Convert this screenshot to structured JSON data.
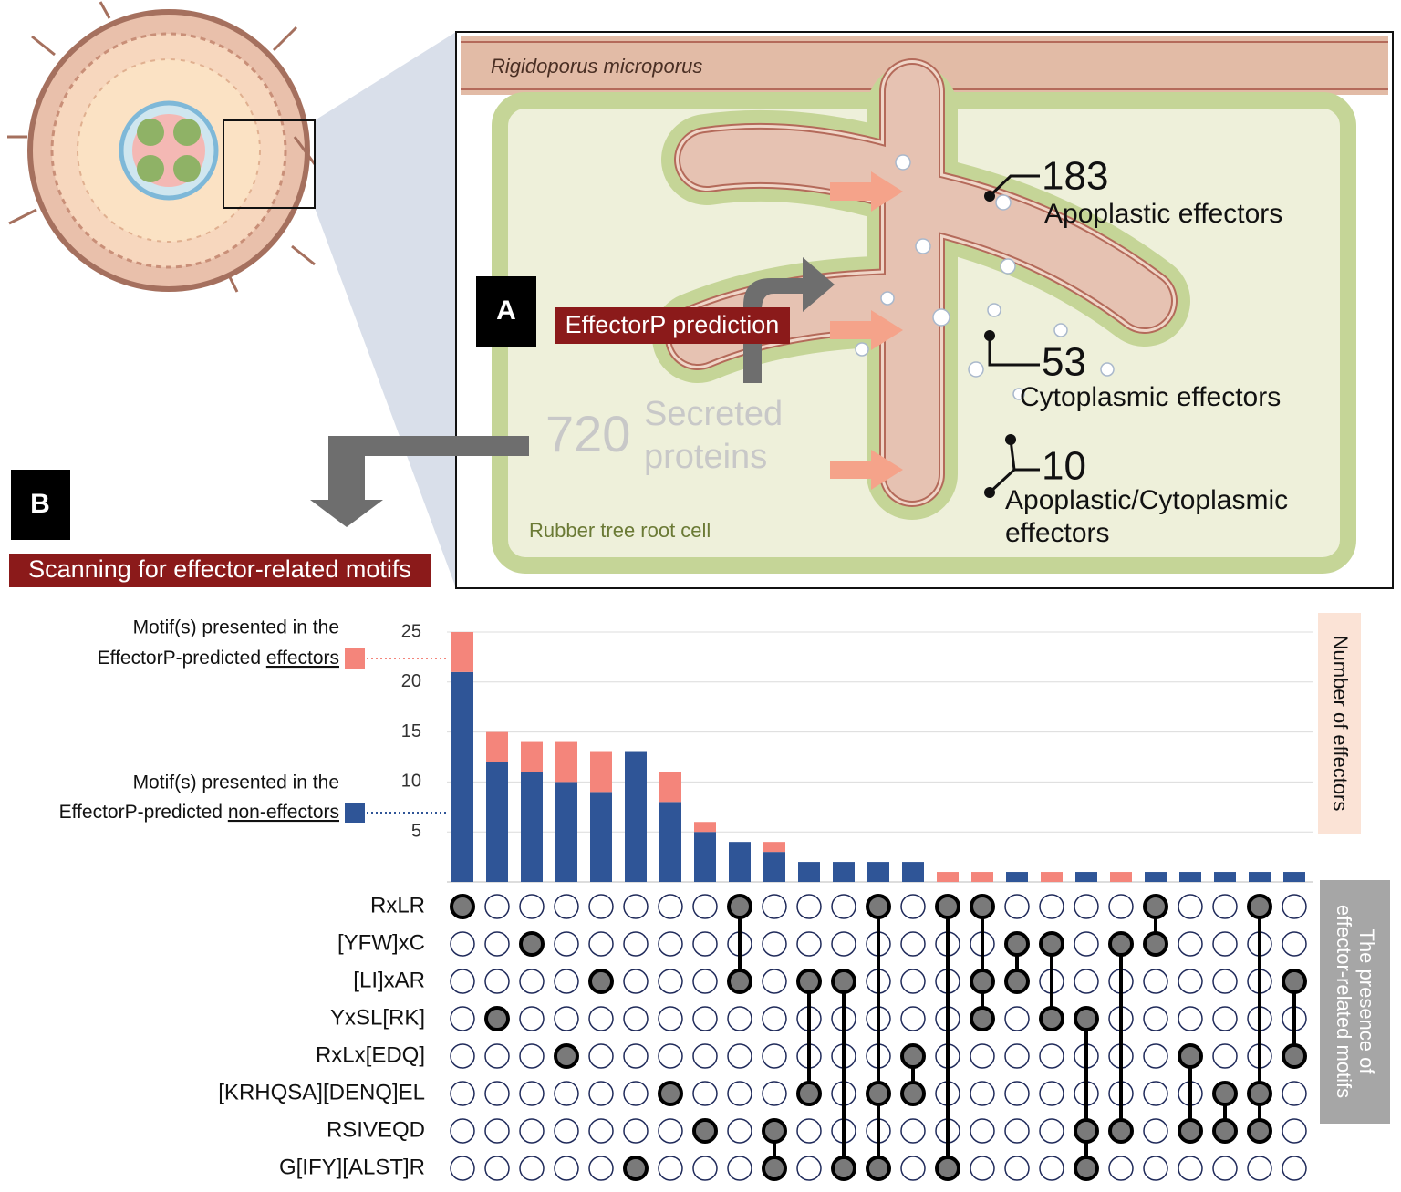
{
  "diagram": {
    "fungus": "Rigidoporus  microporus",
    "host": "Rubber tree root cell",
    "panel_a": "A",
    "panel_b": "B",
    "prediction": "EffectorP prediction",
    "secreted_count": 720,
    "secreted_label": [
      "Secreted",
      "proteins"
    ],
    "apoplastic_count": 183,
    "apoplastic_label": "Apoplastic effectors",
    "cytoplasmic_count": 53,
    "cytoplasmic_label": "Cytoplasmic effectors",
    "dual_count": 10,
    "dual_label": [
      "Apoplastic/Cytoplasmic",
      "effectors"
    ],
    "scanning": "Scanning for effector-related motifs"
  },
  "chart_data": {
    "type": "upset",
    "ylabel": "Number of effectors",
    "matrix_label": [
      "The presence of",
      "effector-related motifs"
    ],
    "legend_prefix": [
      "Motif(s) presented in the",
      "EffectorP-predicted"
    ],
    "sets": [
      "RxLR",
      "[YFW]xC",
      "[LI]xAR",
      "YxSL[RK]",
      "RxLx[EDQ]",
      "[KRHQSA][DENQ]EL",
      "RSIVEQD",
      "G[IFY][ALST]R"
    ],
    "combinations": [
      [
        0
      ],
      [
        3
      ],
      [
        1
      ],
      [
        4
      ],
      [
        2
      ],
      [
        7
      ],
      [
        5
      ],
      [
        6
      ],
      [
        0,
        2
      ],
      [
        6,
        7
      ],
      [
        2,
        5
      ],
      [
        2,
        7
      ],
      [
        0,
        5,
        7
      ],
      [
        4,
        5
      ],
      [
        0,
        7
      ],
      [
        0,
        2,
        3
      ],
      [
        1,
        2
      ],
      [
        1,
        3
      ],
      [
        3,
        6,
        7
      ],
      [
        1,
        6
      ],
      [
        0,
        1
      ],
      [
        4,
        6
      ],
      [
        5,
        6
      ],
      [
        0,
        5,
        6
      ],
      [
        2,
        4
      ]
    ],
    "series": [
      {
        "name": "non-effectors",
        "color": "#2f5597",
        "values": [
          21,
          12,
          11,
          10,
          9,
          13,
          8,
          5,
          4,
          3,
          2,
          2,
          2,
          2,
          0,
          0,
          1,
          0,
          1,
          0,
          1,
          1,
          1,
          1,
          1
        ]
      },
      {
        "name": "effectors",
        "color": "#f4857b",
        "values": [
          4,
          3,
          3,
          4,
          4,
          0,
          3,
          1,
          0,
          1,
          0,
          0,
          0,
          0,
          1,
          1,
          0,
          1,
          0,
          1,
          0,
          0,
          0,
          0,
          0
        ]
      }
    ],
    "ylim": [
      0,
      25
    ],
    "yticks": [
      5,
      10,
      15,
      20,
      25
    ],
    "grid": true
  }
}
